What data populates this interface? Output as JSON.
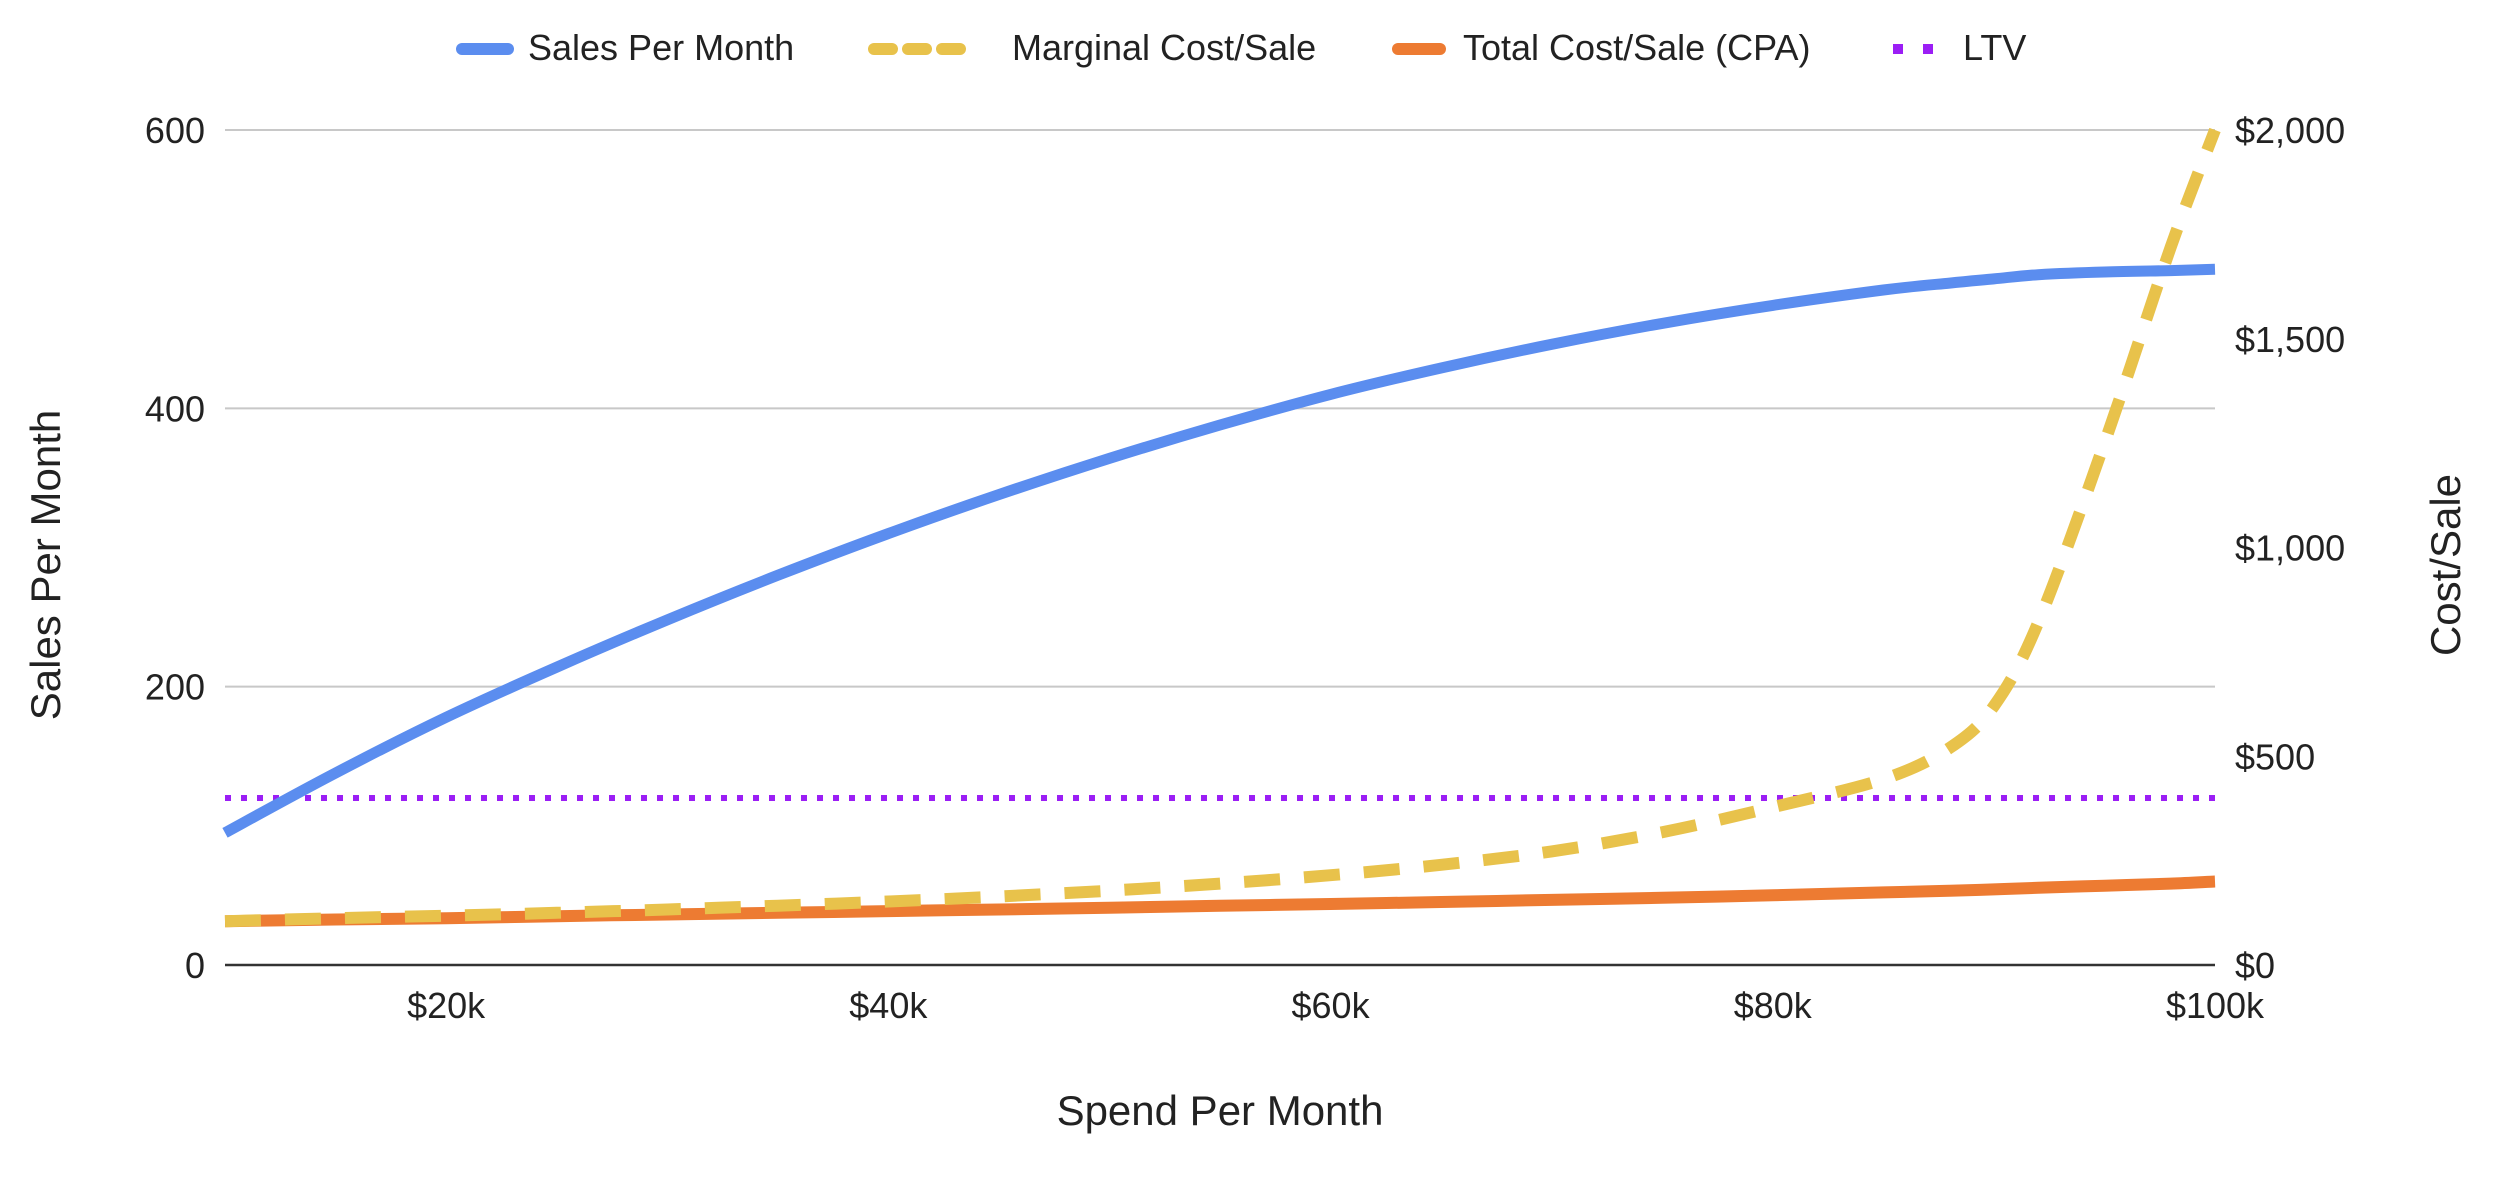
{
  "colors": {
    "sales": "#5b8def",
    "marginal": "#e8c24b",
    "total": "#ed7b32",
    "ltv": "#9b1ef5",
    "grid": "#c8c8c8",
    "axis": "#333333",
    "text": "#222222"
  },
  "chart_data": {
    "type": "line",
    "title": "",
    "xlabel": "Spend Per Month",
    "ylabel_left": "Sales Per Month",
    "ylabel_right": "Cost/Sale",
    "xlim": [
      10000,
      100000
    ],
    "ylim_left": [
      0,
      600
    ],
    "ylim_right": [
      0,
      2000
    ],
    "x_ticks": [
      20000,
      40000,
      60000,
      80000,
      100000
    ],
    "x_tick_labels": [
      "$20k",
      "$40k",
      "$60k",
      "$80k",
      "$100k"
    ],
    "y_left_ticks": [
      0,
      200,
      400,
      600
    ],
    "y_left_tick_labels": [
      "0",
      "200",
      "400",
      "600"
    ],
    "y_right_ticks": [
      0,
      500,
      1000,
      1500,
      2000
    ],
    "y_right_tick_labels": [
      "$0",
      "$500",
      "$1,000",
      "$1,500",
      "$2,000"
    ],
    "grid": true,
    "legend_position": "top-center",
    "x": [
      10000,
      15000,
      20000,
      25000,
      30000,
      35000,
      40000,
      45000,
      50000,
      55000,
      60000,
      65000,
      70000,
      75000,
      80000,
      85000,
      88000,
      90000,
      92000,
      95000,
      98000,
      100000
    ],
    "series": [
      {
        "name": "Sales Per Month",
        "axis": "left",
        "style": "solid",
        "values": [
          95,
          138,
          178,
          214,
          248,
          280,
          310,
          338,
          364,
          388,
          410,
          429,
          446,
          461,
          474,
          485,
          490,
          493,
          496,
          498,
          499,
          500
        ]
      },
      {
        "name": "Marginal Cost/Sale",
        "axis": "right",
        "style": "dashed",
        "values": [
          105,
          112,
          118,
          125,
          133,
          142,
          152,
          164,
          178,
          195,
          215,
          240,
          272,
          318,
          378,
          445,
          520,
          620,
          820,
          1250,
          1720,
          2000
        ]
      },
      {
        "name": "Total Cost/Sale (CPA)",
        "axis": "right",
        "style": "solid",
        "values": [
          105,
          109,
          112,
          117,
          121,
          125,
          129,
          133,
          137,
          142,
          146,
          151,
          156,
          161,
          167,
          174,
          178,
          181,
          185,
          190,
          195,
          200
        ]
      },
      {
        "name": "LTV",
        "axis": "right",
        "style": "dotted",
        "values": [
          400,
          400,
          400,
          400,
          400,
          400,
          400,
          400,
          400,
          400,
          400,
          400,
          400,
          400,
          400,
          400,
          400,
          400,
          400,
          400,
          400,
          400
        ]
      }
    ]
  }
}
